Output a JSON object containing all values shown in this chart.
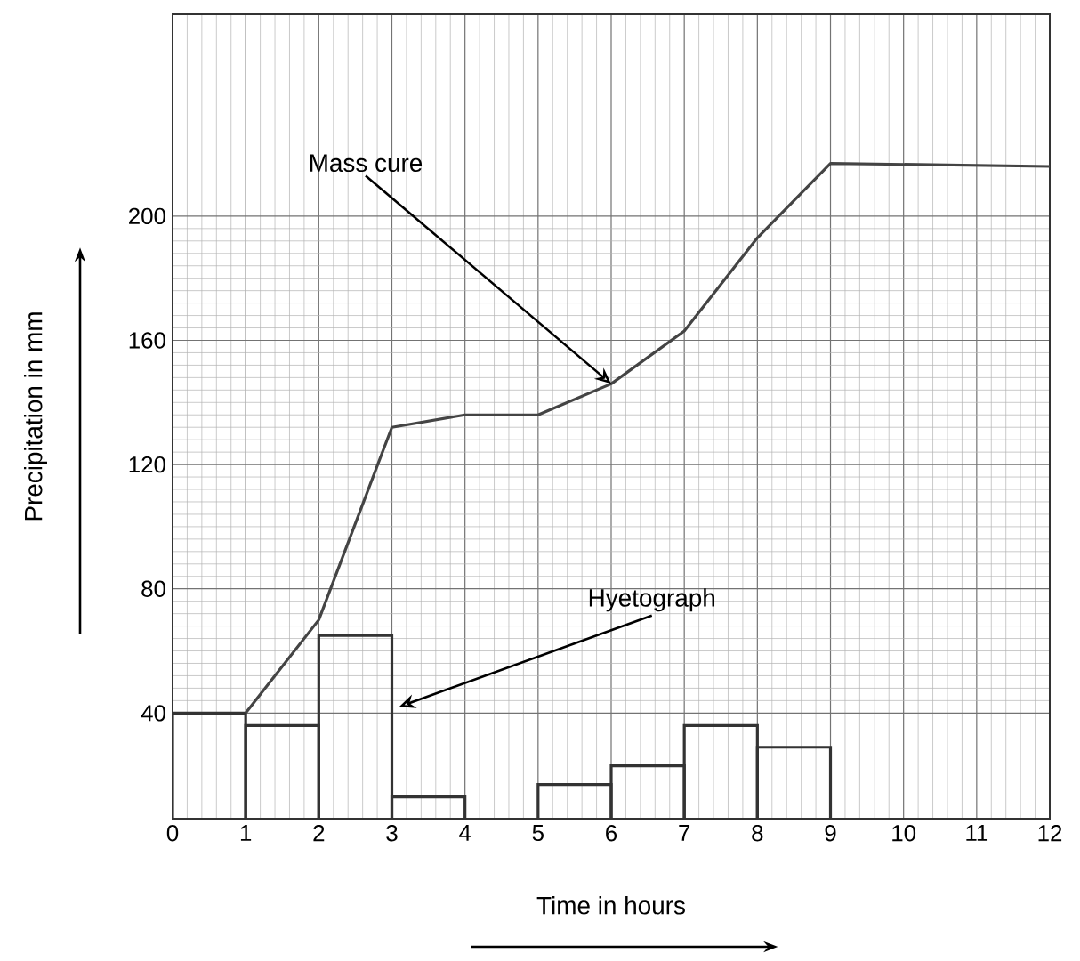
{
  "chart_data": {
    "type": "histogram",
    "xlabel": "Time in hours",
    "ylabel": "Precipitation in mm",
    "xlim": [
      0,
      12
    ],
    "ylim": [
      6,
      265
    ],
    "xticks": [
      0,
      1,
      2,
      3,
      4,
      5,
      6,
      7,
      8,
      9,
      10,
      11,
      12
    ],
    "yticks": [
      40,
      80,
      120,
      160,
      200
    ],
    "grid": true,
    "marker": "none",
    "line_style": "solid",
    "series": [
      {
        "color": "#333333",
        "bins": [
          0,
          1,
          2,
          3,
          4,
          5,
          6,
          7,
          8,
          9
        ],
        "values": [
          40,
          36,
          65,
          13,
          null,
          17,
          23,
          36,
          29
        ]
      },
      {
        "type": "line",
        "color": "#444444",
        "x": [
          1,
          2,
          3,
          4,
          5,
          6,
          7,
          8,
          9,
          12
        ],
        "values": [
          40,
          70,
          132,
          136,
          136,
          146,
          163,
          193,
          217,
          216
        ]
      }
    ],
    "annotations": [
      {
        "text": "Mass cure",
        "x": 6,
        "y": 146
      },
      {
        "text": "Hyetograph",
        "x": 3.1,
        "y": 42
      }
    ]
  }
}
